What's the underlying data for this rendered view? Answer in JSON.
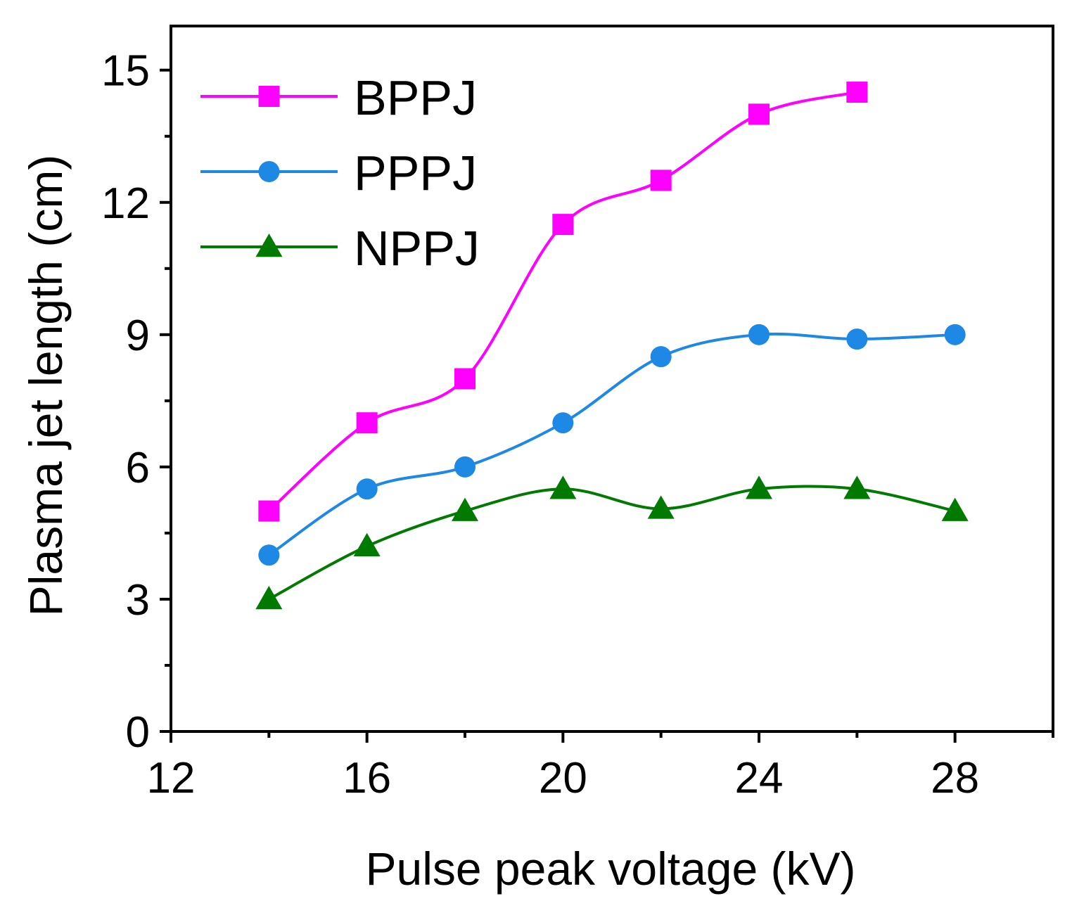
{
  "chart_data": {
    "type": "line",
    "title": "",
    "xlabel": "Pulse peak voltage (kV)",
    "ylabel": "Plasma jet length (cm)",
    "xlim": [
      12,
      30
    ],
    "ylim": [
      0,
      16
    ],
    "xticks": [
      12,
      16,
      20,
      24,
      28
    ],
    "yticks": [
      0,
      3,
      6,
      9,
      12,
      15
    ],
    "xtick_labels": [
      "12",
      "16",
      "20",
      "24",
      "28"
    ],
    "ytick_labels": [
      "0",
      "3",
      "6",
      "9",
      "12",
      "15"
    ],
    "grid": false,
    "legend_position": "top-left",
    "series": [
      {
        "name": "BPPJ",
        "color": "#ff00ff",
        "marker": "square",
        "x": [
          14,
          16,
          18,
          20,
          22,
          24,
          26
        ],
        "y": [
          5.0,
          7.0,
          8.0,
          11.5,
          12.5,
          14.0,
          14.5
        ]
      },
      {
        "name": "PPPJ",
        "color": "#1e88e5",
        "marker": "circle",
        "x": [
          14,
          16,
          18,
          20,
          22,
          24,
          26,
          28
        ],
        "y": [
          4.0,
          5.5,
          6.0,
          7.0,
          8.5,
          9.0,
          8.9,
          9.0
        ]
      },
      {
        "name": "NPPJ",
        "color": "#007a00",
        "marker": "triangle",
        "x": [
          14,
          16,
          18,
          20,
          22,
          24,
          26,
          28
        ],
        "y": [
          3.0,
          4.2,
          5.0,
          5.5,
          5.05,
          5.5,
          5.5,
          5.0
        ]
      }
    ]
  }
}
